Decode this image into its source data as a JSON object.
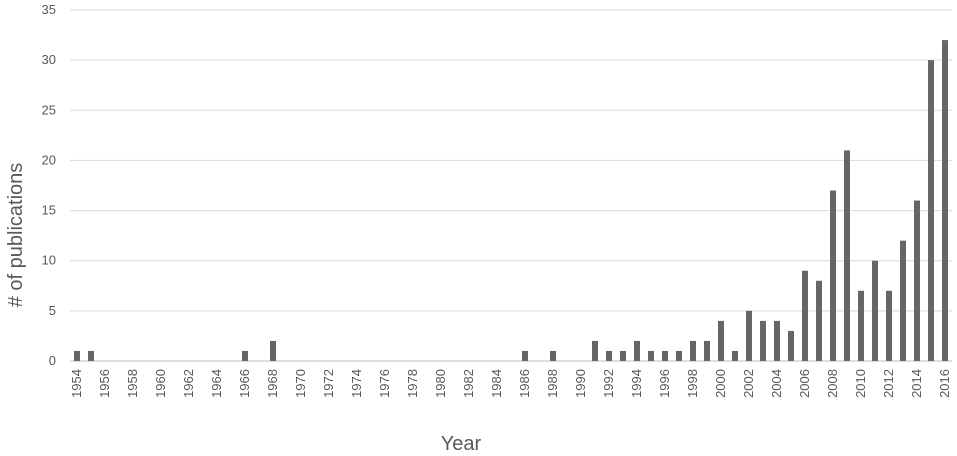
{
  "chart_data": {
    "type": "bar",
    "title": "",
    "xlabel": "Year",
    "ylabel": "# of publications",
    "ylim": [
      0,
      35
    ],
    "yticks": [
      "0",
      "5",
      "10",
      "15",
      "20",
      "25",
      "30",
      "35"
    ],
    "grid": true,
    "legend": "none",
    "bar_color": "#666666",
    "categories": [
      "1954",
      "1955",
      "1956",
      "1957",
      "1958",
      "1959",
      "1960",
      "1961",
      "1962",
      "1963",
      "1964",
      "1965",
      "1966",
      "1967",
      "1968",
      "1969",
      "1970",
      "1971",
      "1972",
      "1973",
      "1974",
      "1975",
      "1976",
      "1977",
      "1978",
      "1979",
      "1980",
      "1981",
      "1982",
      "1983",
      "1984",
      "1985",
      "1986",
      "1987",
      "1988",
      "1989",
      "1990",
      "1991",
      "1992",
      "1993",
      "1994",
      "1995",
      "1996",
      "1997",
      "1998",
      "1999",
      "2000",
      "2001",
      "2002",
      "2003",
      "2004",
      "2005",
      "2006",
      "2007",
      "2008",
      "2009",
      "2010",
      "2011",
      "2012",
      "2013",
      "2014",
      "2015",
      "2016"
    ],
    "values": [
      1,
      1,
      0,
      0,
      0,
      0,
      0,
      0,
      0,
      0,
      0,
      0,
      1,
      0,
      2,
      0,
      0,
      0,
      0,
      0,
      0,
      0,
      0,
      0,
      0,
      0,
      0,
      0,
      0,
      0,
      0,
      0,
      1,
      0,
      1,
      0,
      0,
      2,
      1,
      1,
      2,
      1,
      1,
      1,
      2,
      2,
      4,
      1,
      5,
      4,
      4,
      3,
      9,
      8,
      17,
      21,
      7,
      10,
      7,
      12,
      16,
      30,
      32
    ],
    "xtick_labels": [
      "1954",
      "1956",
      "1958",
      "1960",
      "1962",
      "1964",
      "1966",
      "1968",
      "1970",
      "1972",
      "1974",
      "1976",
      "1978",
      "1980",
      "1982",
      "1984",
      "1986",
      "1988",
      "1990",
      "1992",
      "1994",
      "1996",
      "1998",
      "2000",
      "2002",
      "2004",
      "2006",
      "2008",
      "2010",
      "2012",
      "2014",
      "2016"
    ]
  }
}
